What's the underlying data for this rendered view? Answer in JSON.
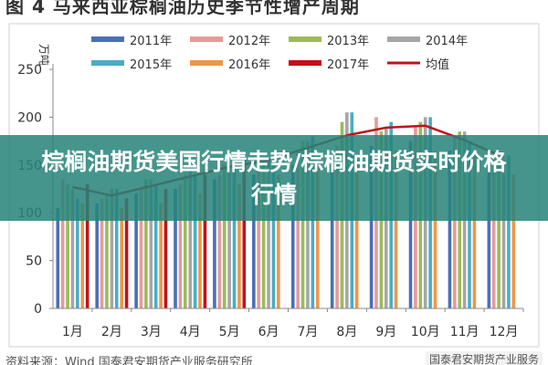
{
  "page": {
    "title": "图 4 马来西亚棕榈油历史季节性增产周期",
    "banner_text": "棕榈油期货美国行情走势/棕榈油期货实时价格行情",
    "source_left": "资料来源：Wind 国泰君安期货产业服务研究所",
    "source_right": "国泰君安期货产业服务"
  },
  "chart_data": {
    "type": "bar",
    "ylabel": "万吨",
    "ylim": [
      0,
      250
    ],
    "yticks": [
      0,
      50,
      100,
      150,
      200,
      250
    ],
    "categories": [
      "1月",
      "2月",
      "3月",
      "4月",
      "5月",
      "6月",
      "7月",
      "8月",
      "9月",
      "10月",
      "11月",
      "12月"
    ],
    "series": [
      {
        "name": "2011年",
        "color": "#4a6fb5",
        "values": [
          105,
          110,
          120,
          125,
          135,
          140,
          150,
          160,
          170,
          175,
          165,
          150
        ]
      },
      {
        "name": "2012年",
        "color": "#e79a9a",
        "values": [
          135,
          115,
          125,
          130,
          140,
          145,
          165,
          170,
          200,
          190,
          180,
          155
        ]
      },
      {
        "name": "2013年",
        "color": "#9bbb59",
        "values": [
          130,
          120,
          135,
          140,
          150,
          150,
          175,
          195,
          185,
          195,
          185,
          160
        ]
      },
      {
        "name": "2014年",
        "color": "#a6a6a6",
        "values": [
          125,
          125,
          135,
          145,
          150,
          155,
          175,
          205,
          190,
          200,
          185,
          155
        ]
      },
      {
        "name": "2015年",
        "color": "#4bacc6",
        "values": [
          115,
          125,
          130,
          140,
          150,
          160,
          180,
          205,
          195,
          200,
          175,
          160
        ]
      },
      {
        "name": "2016年",
        "color": "#f0964a",
        "values": [
          110,
          105,
          110,
          120,
          130,
          140,
          150,
          155,
          165,
          165,
          160,
          140
        ]
      },
      {
        "name": "2017年",
        "color": "#c0121a",
        "values": [
          130,
          115,
          125,
          140,
          155,
          0,
          0,
          0,
          0,
          0,
          0,
          0
        ]
      }
    ],
    "average_line": {
      "name": "均值",
      "color": "#c0121a",
      "values": [
        127,
        118,
        128,
        138,
        148,
        155,
        168,
        181,
        189,
        191,
        176,
        158
      ]
    },
    "legend_position": "top"
  }
}
